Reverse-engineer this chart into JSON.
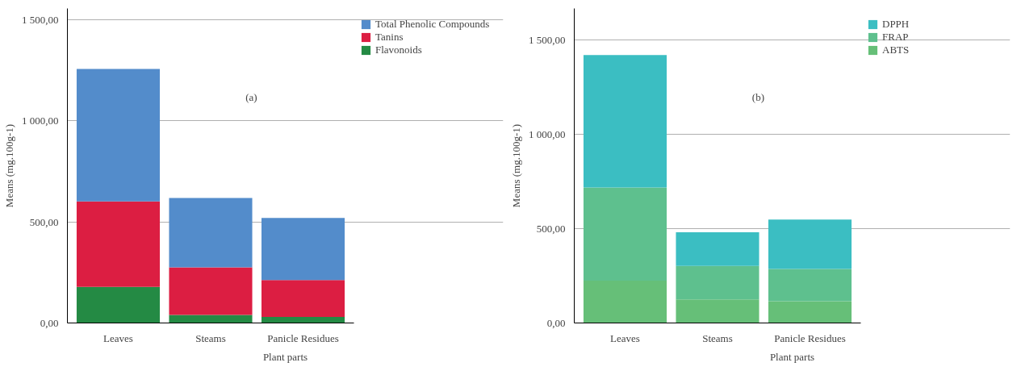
{
  "chart_data": [
    {
      "type": "bar",
      "stacked": true,
      "xlabel": "Plant parts",
      "ylabel": "Means (mg.100g-1)",
      "categories": [
        "Leaves",
        "Steams",
        "Panicle Residues"
      ],
      "annotations": [
        "(a)"
      ],
      "ylim": [
        0,
        1555
      ],
      "yticks": [
        {
          "value": 0,
          "label": "0,00"
        },
        {
          "value": 500,
          "label": "500,00"
        },
        {
          "value": 1000,
          "label": "1 000,00"
        },
        {
          "value": 1500,
          "label": "1 500,00"
        }
      ],
      "grid": "y",
      "legend": "top right",
      "series": [
        {
          "name": "Flavonoids",
          "color": "#248a44",
          "values": [
            178,
            40,
            30
          ]
        },
        {
          "name": "Tanins",
          "color": "#dc1e42",
          "values": [
            423,
            235,
            182
          ]
        },
        {
          "name": "Total Phenolic Compounds",
          "color": "#538ccb",
          "values": [
            655,
            343,
            307
          ]
        }
      ]
    },
    {
      "type": "bar",
      "stacked": true,
      "xlabel": "Plant parts",
      "ylabel": "Means (mg.100g-1)",
      "categories": [
        "Leaves",
        "Steams",
        "Panicle Residues"
      ],
      "annotations": [
        "(b)"
      ],
      "ylim": [
        0,
        1668
      ],
      "yticks": [
        {
          "value": 0,
          "label": "0,00"
        },
        {
          "value": 500,
          "label": "500,00"
        },
        {
          "value": 1000,
          "label": "1 000,00"
        },
        {
          "value": 1500,
          "label": "1 500,00"
        }
      ],
      "grid": "y",
      "legend": "top right",
      "series": [
        {
          "name": "ABTS",
          "color": "#66bf78",
          "values": [
            225,
            125,
            115
          ]
        },
        {
          "name": "FRAP",
          "color": "#5ec08e",
          "values": [
            493,
            178,
            172
          ]
        },
        {
          "name": "DPPH",
          "color": "#3bbec2",
          "values": [
            703,
            178,
            262
          ]
        }
      ]
    }
  ]
}
